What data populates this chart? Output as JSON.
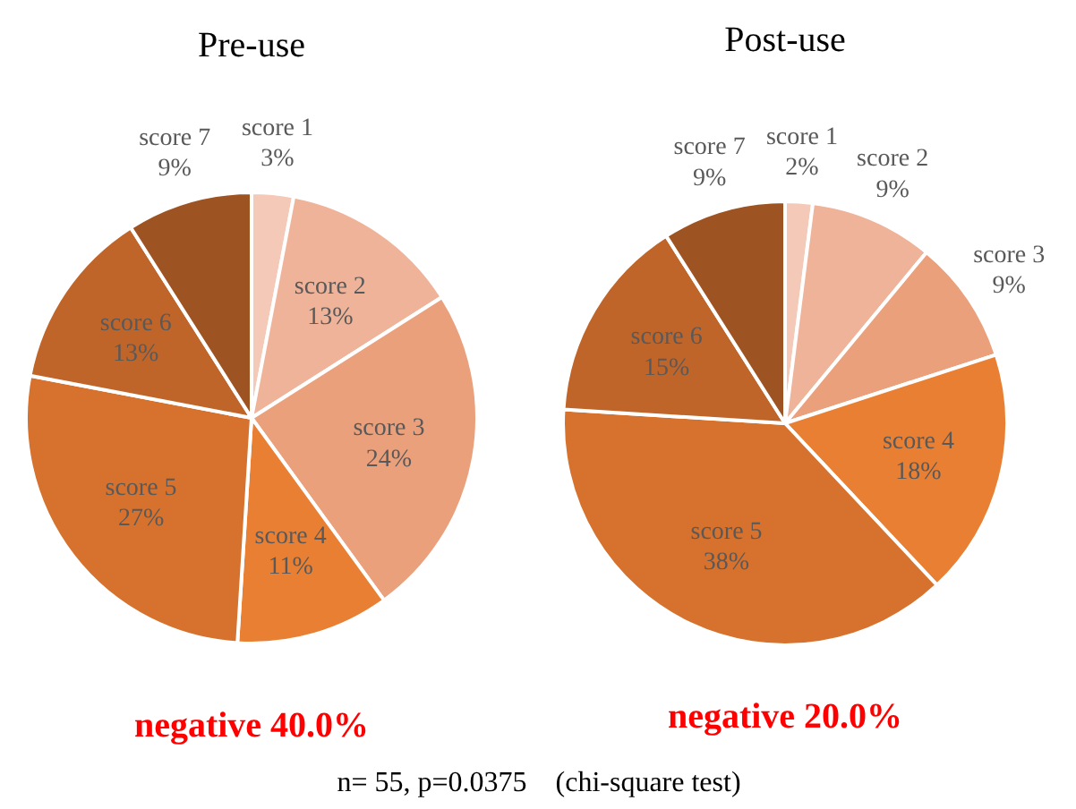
{
  "chart_data": [
    {
      "type": "pie",
      "title": "Pre-use",
      "categories": [
        "score 1",
        "score 2",
        "score 3",
        "score 4",
        "score 5",
        "score 6",
        "score 7"
      ],
      "values": [
        3,
        13,
        24,
        11,
        27,
        13,
        9
      ],
      "colors": [
        "#f4c9b8",
        "#efb39a",
        "#eba07c",
        "#e97f32",
        "#d6722d",
        "#c0652a",
        "#9e5322"
      ],
      "value_labels": [
        "3%",
        "13%",
        "24%",
        "11%",
        "27%",
        "13%",
        "9%"
      ],
      "annotations": [
        "negative 40.0%",
        "n= 55, p=0.0375　(chi-square test)"
      ]
    },
    {
      "type": "pie",
      "title": "Post-use",
      "categories": [
        "score 1",
        "score 2",
        "score 3",
        "score 4",
        "score 5",
        "score 6",
        "score 7"
      ],
      "values": [
        2,
        9,
        9,
        18,
        38,
        15,
        9
      ],
      "colors": [
        "#f4c9b8",
        "#efb39a",
        "#eba07c",
        "#e97f32",
        "#d6722d",
        "#c0652a",
        "#9e5322"
      ],
      "value_labels": [
        "2%",
        "9%",
        "9%",
        "18%",
        "38%",
        "15%",
        "9%"
      ],
      "annotations": [
        "negative 20.0%"
      ]
    }
  ]
}
